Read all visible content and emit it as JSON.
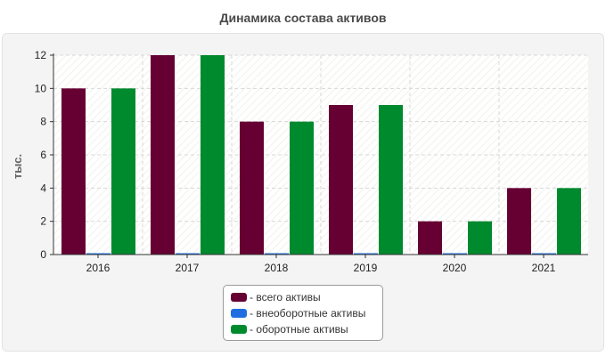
{
  "chart_data": {
    "type": "bar",
    "title": "Динамика состава активов",
    "ylabel": "тыс.",
    "xlabel": "",
    "categories": [
      "2016",
      "2017",
      "2018",
      "2019",
      "2020",
      "2021"
    ],
    "series": [
      {
        "name": "- всего активы",
        "color": "#660033",
        "values": [
          10,
          12,
          8,
          9,
          2,
          4
        ]
      },
      {
        "name": "- внеоборотные активы",
        "color": "#1f6fe0",
        "values": [
          0.05,
          0.05,
          0.05,
          0.05,
          0.05,
          0.05
        ]
      },
      {
        "name": "- оборотные активы",
        "color": "#008a2e",
        "values": [
          10,
          12,
          8,
          9,
          2,
          4
        ]
      }
    ],
    "ylim": [
      0,
      12
    ],
    "yticks": [
      "0",
      "2",
      "4",
      "6",
      "8",
      "10",
      "12"
    ],
    "grid": true,
    "legend_position": "bottom"
  }
}
